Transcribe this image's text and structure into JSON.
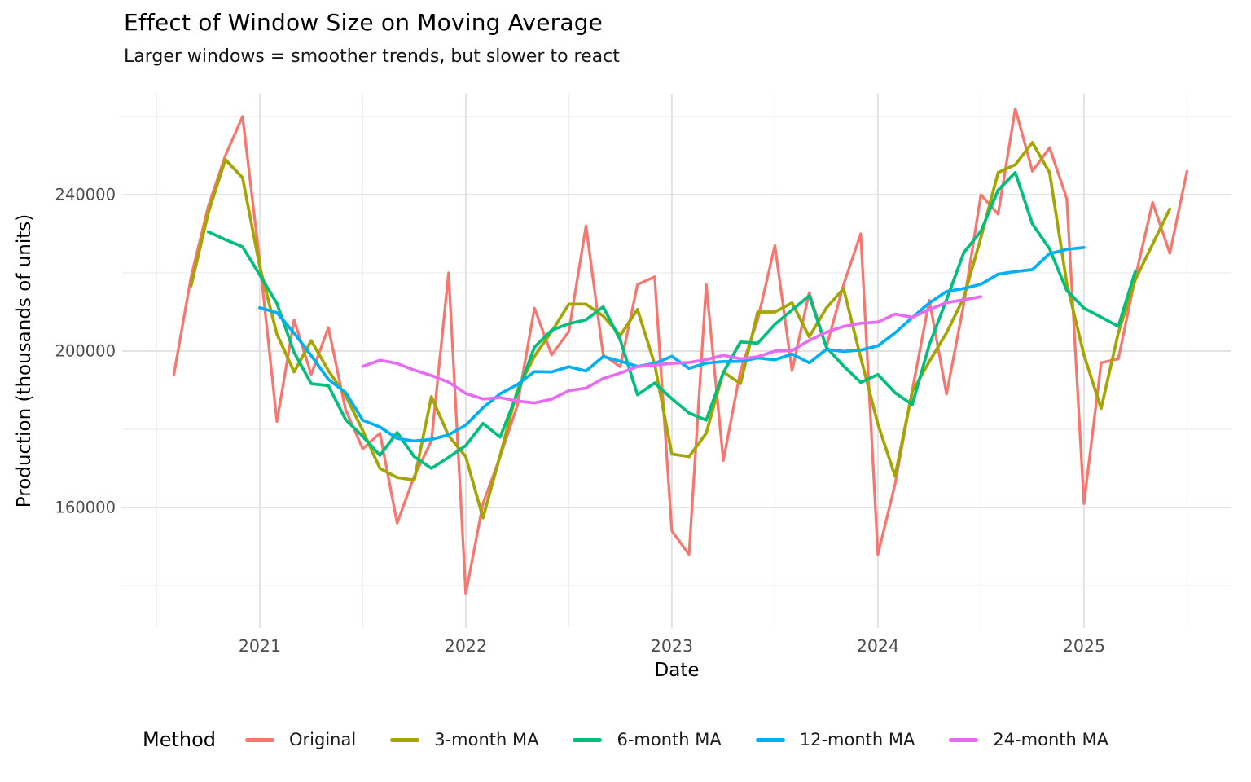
{
  "header": {
    "title": "Effect of Window Size on Moving Average",
    "subtitle": "Larger windows = smoother trends, but slower to react"
  },
  "axes": {
    "x_label": "Date",
    "y_label": "Production (thousands of units)"
  },
  "legend": {
    "title": "Method",
    "position": "bottom"
  },
  "chart_data": {
    "type": "line",
    "title": "Effect of Window Size on Moving Average",
    "subtitle": "Larger windows = smoother trends, but slower to react",
    "xlabel": "Date",
    "ylabel": "Production (thousands of units)",
    "grid": true,
    "ylim": [
      129000,
      266000
    ],
    "y_ticks": [
      {
        "label": "160000",
        "value": 160000
      },
      {
        "label": "200000",
        "value": 200000
      },
      {
        "label": "240000",
        "value": 240000
      }
    ],
    "y_minor_values": [
      140000,
      180000,
      220000,
      260000
    ],
    "x_ticks": [
      {
        "label": "2021",
        "month_index": 5
      },
      {
        "label": "2022",
        "month_index": 17
      },
      {
        "label": "2023",
        "month_index": 29
      },
      {
        "label": "2024",
        "month_index": 41
      },
      {
        "label": "2025",
        "month_index": 53
      }
    ],
    "x_minor_month_indices": [
      -1,
      11,
      23,
      35,
      47,
      59
    ],
    "x_months": [
      "2020-08",
      "2020-09",
      "2020-10",
      "2020-11",
      "2020-12",
      "2021-01",
      "2021-02",
      "2021-03",
      "2021-04",
      "2021-05",
      "2021-06",
      "2021-07",
      "2021-08",
      "2021-09",
      "2021-10",
      "2021-11",
      "2021-12",
      "2022-01",
      "2022-02",
      "2022-03",
      "2022-04",
      "2022-05",
      "2022-06",
      "2022-07",
      "2022-08",
      "2022-09",
      "2022-10",
      "2022-11",
      "2022-12",
      "2023-01",
      "2023-02",
      "2023-03",
      "2023-04",
      "2023-05",
      "2023-06",
      "2023-07",
      "2023-08",
      "2023-09",
      "2023-10",
      "2023-11",
      "2023-12",
      "2024-01",
      "2024-02",
      "2024-03",
      "2024-04",
      "2024-05",
      "2024-06",
      "2024-07",
      "2024-08",
      "2024-09",
      "2024-10",
      "2024-11",
      "2024-12",
      "2025-01",
      "2025-02",
      "2025-03",
      "2025-04",
      "2025-05",
      "2025-06",
      "2025-07"
    ],
    "ma_method": "centered moving average computed from the Original series; window covers [i-floor((w-1)/2), i+ceil((w-1)/2)]",
    "series": [
      {
        "name": "Original",
        "color": "#F8766D",
        "window": 1,
        "values": [
          194000,
          219000,
          237000,
          250000,
          260000,
          223000,
          182000,
          208000,
          194000,
          206000,
          185000,
          175000,
          179000,
          156000,
          168000,
          177000,
          220000,
          138000,
          161000,
          173000,
          186000,
          211000,
          199000,
          205000,
          232000,
          199000,
          196000,
          217000,
          219000,
          154000,
          148000,
          217000,
          172000,
          195000,
          208000,
          227000,
          195000,
          215000,
          201000,
          217000,
          230000,
          148000,
          166000,
          190000,
          213000,
          189000,
          212000,
          240000,
          235000,
          262000,
          246000,
          252000,
          239000,
          161000,
          197000,
          198000,
          219000,
          238000,
          225000,
          246000
        ]
      },
      {
        "name": "3-month MA",
        "color": "#A3A500",
        "window": 3,
        "derived_from": "Original"
      },
      {
        "name": "6-month MA",
        "color": "#00BF7D",
        "window": 6,
        "derived_from": "Original"
      },
      {
        "name": "12-month MA",
        "color": "#00B0F6",
        "window": 12,
        "derived_from": "Original"
      },
      {
        "name": "24-month MA",
        "color": "#E76BF3",
        "window": 24,
        "derived_from": "Original"
      }
    ]
  }
}
